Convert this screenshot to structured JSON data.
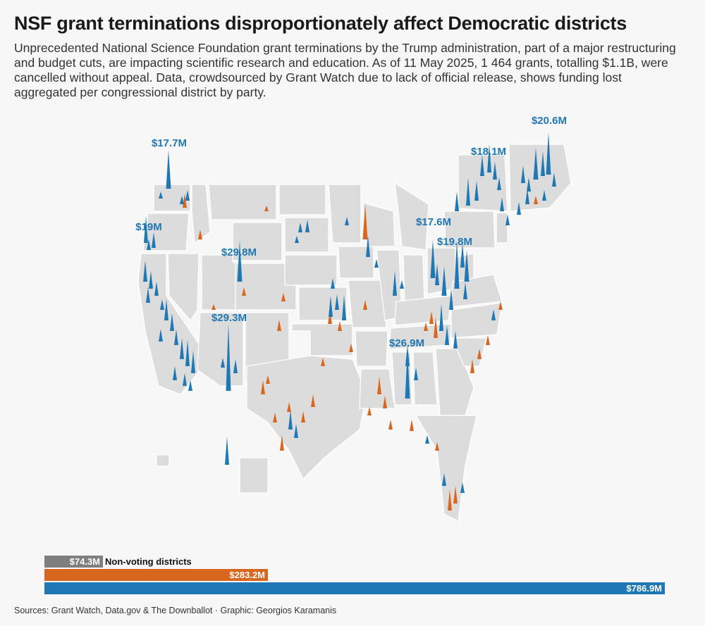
{
  "header": {
    "title": "NSF grant terminations disproportionately affect Democratic districts",
    "subtitle": "Unprecedented National Science Foundation grant terminations by the Trump administration, part of a major restructuring and budget cuts, are impacting scientific research and education. As of 11 May 2025, 1 464 grants, totalling $1.1B, were cancelled without appeal. Data, crowdsourced by Grant Watch due to lack of official release, shows funding lost aggregated per congressional district by party."
  },
  "colors": {
    "democratic": "#1f78b4",
    "republican": "#d9661f",
    "non_voting": "#7f7f7f",
    "district_fill": "#dcdcdc",
    "district_stroke": "#ffffff",
    "background": "#f7f7f7"
  },
  "peak_labels": [
    {
      "text": "$17.7M",
      "party": "democratic"
    },
    {
      "text": "$19M",
      "party": "democratic"
    },
    {
      "text": "$29.8M",
      "party": "democratic"
    },
    {
      "text": "$29.3M",
      "party": "democratic"
    },
    {
      "text": "$26.9M",
      "party": "democratic"
    },
    {
      "text": "$17.6M",
      "party": "democratic"
    },
    {
      "text": "$19.8M",
      "party": "democratic"
    },
    {
      "text": "$18.1M",
      "party": "democratic"
    },
    {
      "text": "$20.6M",
      "party": "democratic"
    }
  ],
  "totals": {
    "non_voting": {
      "value_label": "$74.3M",
      "caption": "Non-voting districts",
      "value": 74.3
    },
    "republican": {
      "value_label": "$283.2M",
      "value": 283.2
    },
    "democratic": {
      "value_label": "$786.9M",
      "value": 786.9
    }
  },
  "footer": {
    "source": "Sources: Grant Watch, Data.gov & The Downballot · Graphic: Georgios Karamanis"
  }
}
